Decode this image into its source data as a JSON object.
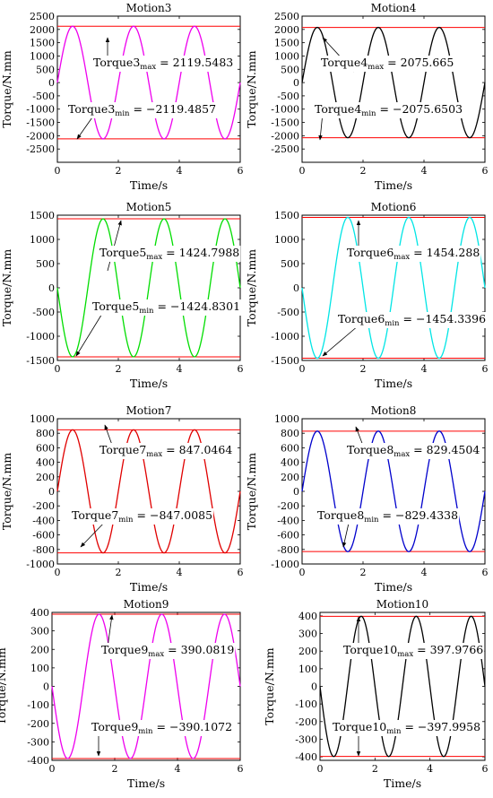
{
  "chart_data": [
    {
      "type": "line",
      "title": "Motion3",
      "xlabel": "Time/s",
      "ylabel": "Torque/N.mm",
      "xlim": [
        0,
        6
      ],
      "ylim": [
        -3000,
        2500
      ],
      "xticks": [
        0,
        2,
        4,
        6
      ],
      "yticks": [
        -2500,
        -2000,
        -1500,
        -1000,
        -500,
        0,
        500,
        1000,
        1500,
        2000,
        2500
      ],
      "color": "#ee00ee",
      "series": [
        {
          "amplitude": 2119.5,
          "period": 2,
          "phase": 1,
          "t": [
            0,
            6
          ]
        }
      ],
      "hlines": [
        2119.5483,
        -2119.4857
      ],
      "annotations": [
        {
          "base": "Torque3",
          "sub": "max",
          "value": "2119.5483"
        },
        {
          "base": "Torque3",
          "sub": "min",
          "value": "−2119.4857"
        }
      ]
    },
    {
      "type": "line",
      "title": "Motion4",
      "xlabel": "Time/s",
      "ylabel": "Torque/N.mm",
      "xlim": [
        0,
        6
      ],
      "ylim": [
        -3000,
        2500
      ],
      "xticks": [
        0,
        2,
        4,
        6
      ],
      "yticks": [
        -2500,
        -2000,
        -1500,
        -1000,
        -500,
        0,
        500,
        1000,
        1500,
        2000,
        2500
      ],
      "color": "#000000",
      "series": [
        {
          "amplitude": 2075.7,
          "period": 2,
          "phase": 1,
          "t": [
            0,
            6
          ]
        }
      ],
      "hlines": [
        2075.665,
        -2075.6503
      ],
      "annotations": [
        {
          "base": "Torque4",
          "sub": "max",
          "value": "2075.665"
        },
        {
          "base": "Torque4",
          "sub": "min",
          "value": "−2075.6503"
        }
      ]
    },
    {
      "type": "line",
      "title": "Motion5",
      "xlabel": "Time/s",
      "ylabel": "Torque/N.mm",
      "xlim": [
        0,
        6
      ],
      "ylim": [
        -1500,
        1500
      ],
      "xticks": [
        0,
        2,
        4,
        6
      ],
      "yticks": [
        -1500,
        -1000,
        -500,
        0,
        500,
        1000,
        1500
      ],
      "color": "#00dd00",
      "series": [
        {
          "amplitude": 1424.8,
          "period": 2,
          "phase": -1,
          "t": [
            0,
            6
          ]
        }
      ],
      "hlines": [
        1424.7988,
        -1424.8301
      ],
      "annotations": [
        {
          "base": "Torque5",
          "sub": "max",
          "value": "1424.7988"
        },
        {
          "base": "Torque5",
          "sub": "min",
          "value": "−1424.8301"
        }
      ]
    },
    {
      "type": "line",
      "title": "Motion6",
      "xlabel": "Time/s",
      "ylabel": "Torque/N.mm",
      "xlim": [
        0,
        6
      ],
      "ylim": [
        -1500,
        1500
      ],
      "xticks": [
        0,
        2,
        4,
        6
      ],
      "yticks": [
        -1500,
        -1000,
        -500,
        0,
        500,
        1000,
        1500
      ],
      "color": "#00e5e5",
      "series": [
        {
          "amplitude": 1454.3,
          "period": 2,
          "phase": -1,
          "t": [
            0,
            6
          ]
        }
      ],
      "hlines": [
        1454.288,
        -1454.3396
      ],
      "annotations": [
        {
          "base": "Torque6",
          "sub": "max",
          "value": "1454.288"
        },
        {
          "base": "Torque6",
          "sub": "min",
          "value": "−1454.3396"
        }
      ]
    },
    {
      "type": "line",
      "title": "Motion7",
      "xlabel": "Time/s",
      "ylabel": "Torque/N.mm",
      "xlim": [
        0,
        6
      ],
      "ylim": [
        -1000,
        1000
      ],
      "xticks": [
        0,
        2,
        4,
        6
      ],
      "yticks": [
        -1000,
        -800,
        -600,
        -400,
        -200,
        0,
        200,
        400,
        600,
        800,
        1000
      ],
      "color": "#e00000",
      "series": [
        {
          "amplitude": 847.0,
          "period": 2,
          "phase": 1,
          "t": [
            0,
            6
          ]
        }
      ],
      "hlines": [
        847.0464,
        -847.0085
      ],
      "annotations": [
        {
          "base": "Torque7",
          "sub": "max",
          "value": "847.0464"
        },
        {
          "base": "Torque7",
          "sub": "min",
          "value": "−847.0085"
        }
      ]
    },
    {
      "type": "line",
      "title": "Motion8",
      "xlabel": "Time/s",
      "ylabel": "Torque/N.mm",
      "xlim": [
        0,
        6
      ],
      "ylim": [
        -1000,
        1000
      ],
      "xticks": [
        0,
        2,
        4,
        6
      ],
      "yticks": [
        -1000,
        -800,
        -600,
        -400,
        -200,
        0,
        200,
        400,
        600,
        800,
        1000
      ],
      "color": "#0000cc",
      "series": [
        {
          "amplitude": 829.4,
          "period": 2,
          "phase": 1,
          "t": [
            0,
            6
          ]
        }
      ],
      "hlines": [
        829.4504,
        -829.4338
      ],
      "annotations": [
        {
          "base": "Torque8",
          "sub": "max",
          "value": "829.4504"
        },
        {
          "base": "Torque8",
          "sub": "min",
          "value": "−829.4338"
        }
      ]
    },
    {
      "type": "line",
      "title": "Motion9",
      "xlabel": "Time/s",
      "ylabel": "Torque/N.mm",
      "xlim": [
        0,
        6
      ],
      "ylim": [
        -400,
        400
      ],
      "xticks": [
        0,
        2,
        4,
        6
      ],
      "yticks": [
        -400,
        -300,
        -200,
        -100,
        0,
        100,
        200,
        300,
        400
      ],
      "color": "#ee00ee",
      "series": [
        {
          "amplitude": 390.1,
          "period": 2,
          "phase": -1,
          "t": [
            0,
            6
          ]
        }
      ],
      "hlines": [
        390.0819,
        -390.1072
      ],
      "annotations": [
        {
          "base": "Torque9",
          "sub": "max",
          "value": "390.0819"
        },
        {
          "base": "Torque9",
          "sub": "min",
          "value": "−390.1072"
        }
      ]
    },
    {
      "type": "line",
      "title": "Motion10",
      "xlabel": "Time/s",
      "ylabel": "Torque/N.mm",
      "xlim": [
        0,
        6
      ],
      "ylim": [
        -420,
        420
      ],
      "xticks": [
        0,
        2,
        4,
        6
      ],
      "yticks": [
        -400,
        -300,
        -200,
        -100,
        0,
        100,
        200,
        300,
        400
      ],
      "color": "#000000",
      "series": [
        {
          "amplitude": 398.0,
          "period": 2,
          "phase": -1,
          "t": [
            0,
            6
          ]
        }
      ],
      "hlines": [
        397.9766,
        -397.9958
      ],
      "annotations": [
        {
          "base": "Torque10",
          "sub": "max",
          "value": "397.9766"
        },
        {
          "base": "Torque10",
          "sub": "min",
          "value": "−397.9958"
        }
      ]
    }
  ],
  "style": {
    "limit_line_color": "#ff0000",
    "axis_color": "#000000"
  }
}
